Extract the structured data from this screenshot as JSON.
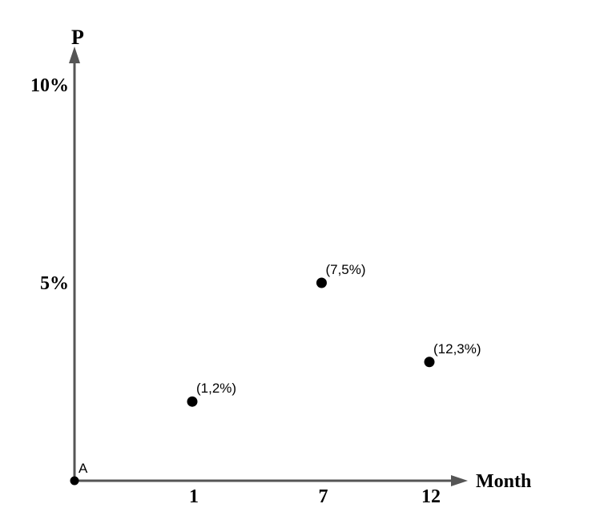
{
  "chart_data": {
    "type": "scatter",
    "title": "",
    "xlabel": "Month",
    "ylabel": "P",
    "origin_label": "A",
    "x_ticks": [
      {
        "value": 1,
        "label": "1"
      },
      {
        "value": 7,
        "label": "7"
      },
      {
        "value": 12,
        "label": "12"
      }
    ],
    "y_ticks": [
      {
        "value": 5,
        "label": "5%"
      },
      {
        "value": 10,
        "label": "10%"
      }
    ],
    "xlim": [
      0,
      12
    ],
    "ylim": [
      0,
      10
    ],
    "grid": false,
    "series": [
      {
        "points": [
          {
            "x": 1,
            "y": 2,
            "label": "(1,2%)"
          },
          {
            "x": 7,
            "y": 5,
            "label": "(7,5%)"
          },
          {
            "x": 12,
            "y": 3,
            "label": "(12,3%)"
          }
        ]
      }
    ],
    "colors": {
      "axis": "#555555",
      "point": "#000000"
    }
  }
}
